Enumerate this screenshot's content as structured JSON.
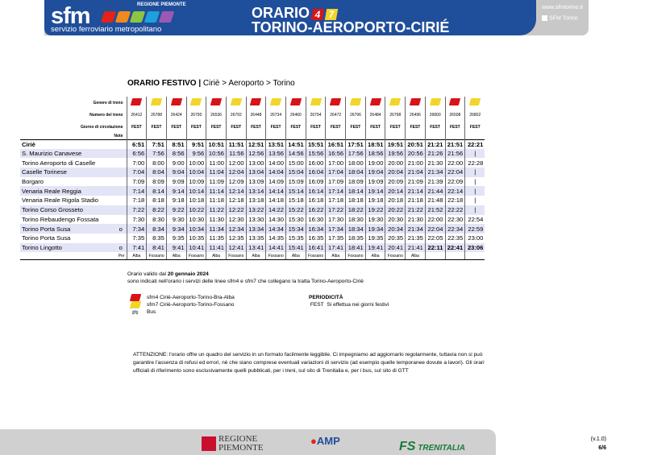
{
  "header": {
    "logo": "sfm",
    "logo_region": "REGIONE PIEMONTE",
    "logo_subtitle": "servizio ferroviario metropolitano",
    "title_line1": "ORARIO",
    "line_badges": [
      "4",
      "7"
    ],
    "title_line2": "TORINO-AEROPORTO-CIRIÉ",
    "website": "www.sfmtorino.it",
    "facebook": "SFM Torino",
    "swatch_colors": [
      "#e2231a",
      "#f08a1c",
      "#8dc63f",
      "#1ea0dc",
      "#9b59b6"
    ]
  },
  "heading": {
    "bold": "ORARIO FESTIVO |",
    "route": "Ciriè > Aeroporto > Torino"
  },
  "colors": {
    "sfm4": "#d7141a",
    "sfm7": "#f2d52a",
    "row_alt": "#e3e4f6",
    "header_blue": "#1f4e9a"
  },
  "table": {
    "labels": {
      "genre": "Genere di treno",
      "number": "Numero del treno",
      "days": "Giorno di circolazione",
      "note": "Note",
      "per": "Per"
    },
    "genres": [
      "sfm4",
      "sfm7",
      "sfm4",
      "sfm7",
      "sfm4",
      "sfm7",
      "sfm4",
      "sfm7",
      "sfm4",
      "sfm7",
      "sfm4",
      "sfm7",
      "sfm4",
      "sfm7",
      "sfm4",
      "sfm7",
      "sfm4",
      "sfm7"
    ],
    "numbers": [
      "26412",
      "26788",
      "26424",
      "26790",
      "26536",
      "26792",
      "26448",
      "26734",
      "26460",
      "26794",
      "26472",
      "26796",
      "26484",
      "26798",
      "26496",
      "26800",
      "26508",
      "26802"
    ],
    "days": [
      "FEST",
      "FEST",
      "FEST",
      "FEST",
      "FEST",
      "FEST",
      "FEST",
      "FEST",
      "FEST",
      "FEST",
      "FEST",
      "FEST",
      "FEST",
      "FEST",
      "FEST",
      "FEST",
      "FEST",
      "FEST"
    ],
    "stations": [
      {
        "name": "Ciriè",
        "mark": "",
        "bold": true,
        "times": [
          "6:51",
          "7:51",
          "8:51",
          "9:51",
          "10:51",
          "11:51",
          "12:51",
          "13:51",
          "14:51",
          "15:51",
          "16:51",
          "17:51",
          "18:51",
          "19:51",
          "20:51",
          "21:21",
          "21:51",
          "22:21"
        ]
      },
      {
        "name": "S. Maurizio Canavese",
        "mark": "",
        "times": [
          "6:56",
          "7:56",
          "8:56",
          "9:56",
          "10:56",
          "11:56",
          "12:56",
          "13:56",
          "14:56",
          "15:56",
          "16:56",
          "17:56",
          "18:56",
          "19:56",
          "20:56",
          "21:26",
          "21:56",
          "|"
        ]
      },
      {
        "name": "Torino Aeroporto di Caselle",
        "mark": "",
        "times": [
          "7:00",
          "8:00",
          "9:00",
          "10:00",
          "11:00",
          "12:00",
          "13:00",
          "14:00",
          "15:00",
          "16:00",
          "17:00",
          "18:00",
          "19:00",
          "20:00",
          "21:00",
          "21:30",
          "22:00",
          "22:28"
        ]
      },
      {
        "name": "Caselle Torinese",
        "mark": "",
        "times": [
          "7:04",
          "8:04",
          "9:04",
          "10:04",
          "11:04",
          "12:04",
          "13:04",
          "14:04",
          "15:04",
          "16:04",
          "17:04",
          "18:04",
          "19:04",
          "20:04",
          "21:04",
          "21:34",
          "22:04",
          "|"
        ]
      },
      {
        "name": "Borgaro",
        "mark": "",
        "times": [
          "7:09",
          "8:09",
          "9:09",
          "10:09",
          "11:09",
          "12:09",
          "13:09",
          "14:09",
          "15:09",
          "16:09",
          "17:09",
          "18:09",
          "19:09",
          "20:09",
          "21:09",
          "21:39",
          "22:09",
          "|"
        ]
      },
      {
        "name": "Venaria Reale Reggia",
        "mark": "",
        "times": [
          "7:14",
          "8:14",
          "9:14",
          "10:14",
          "11:14",
          "12:14",
          "13:14",
          "14:14",
          "15:14",
          "16:14",
          "17:14",
          "18:14",
          "19:14",
          "20:14",
          "21:14",
          "21:44",
          "22:14",
          "|"
        ]
      },
      {
        "name": "Venaria Reale Rigola Stadio",
        "mark": "",
        "times": [
          "7:18",
          "8:18",
          "9:18",
          "10:18",
          "11:18",
          "12:18",
          "13:18",
          "14:18",
          "15:18",
          "16:18",
          "17:18",
          "18:18",
          "19:18",
          "20:18",
          "21:18",
          "21:48",
          "22:18",
          "|"
        ]
      },
      {
        "name": "Torino Corso Grosseto",
        "mark": "",
        "times": [
          "7:22",
          "8:22",
          "9:22",
          "10:22",
          "11:22",
          "12:22",
          "13:22",
          "14:22",
          "15:22",
          "16:22",
          "17:22",
          "18:22",
          "19:22",
          "20:22",
          "21:22",
          "21:52",
          "22:22",
          "|"
        ]
      },
      {
        "name": "Torino Rebaudengo Fossata",
        "mark": "",
        "times": [
          "7:30",
          "8:30",
          "9:30",
          "10:30",
          "11:30",
          "12:30",
          "13:30",
          "14:30",
          "15:30",
          "16:30",
          "17:30",
          "18:30",
          "19:30",
          "20:30",
          "21:30",
          "22:00",
          "22:30",
          "22:54"
        ]
      },
      {
        "name": "Torino Porta Susa",
        "mark": "o",
        "times": [
          "7:34",
          "8:34",
          "9:34",
          "10:34",
          "11:34",
          "12:34",
          "13:34",
          "14:34",
          "15:34",
          "16:34",
          "17:34",
          "18:34",
          "19:34",
          "20:34",
          "21:34",
          "22:04",
          "22:34",
          "22:59"
        ]
      },
      {
        "name": "Torino Porta Susa",
        "mark": "",
        "times": [
          "7:35",
          "8:35",
          "9:35",
          "10:35",
          "11:35",
          "12:35",
          "13:35",
          "14:35",
          "15:35",
          "16:35",
          "17:35",
          "18:35",
          "19:35",
          "20:35",
          "21:35",
          "22:05",
          "22:35",
          "23:00"
        ]
      },
      {
        "name": "Torino Lingotto",
        "mark": "o",
        "bold_last": 3,
        "times": [
          "7:41",
          "8:41",
          "9:41",
          "10:41",
          "11:41",
          "12:41",
          "13:41",
          "14:41",
          "15:41",
          "16:41",
          "17:41",
          "18:41",
          "19:41",
          "20:41",
          "21:41",
          "22:11",
          "22:41",
          "23:06"
        ]
      }
    ],
    "per": [
      "Alba",
      "Fossano",
      "Alba",
      "Fossano",
      "Alba",
      "Fossano",
      "Alba",
      "Fossano",
      "Alba",
      "Fossano",
      "Alba",
      "Fossano",
      "Alba",
      "Fossano",
      "Alba",
      "",
      "",
      ""
    ]
  },
  "notes": {
    "valid_prefix": "Orario valido dal",
    "valid_date": "20 gennaio 2024",
    "line2": "sono indicati nell'orario i servizi delle linee sfm4 e sfm7 che collegano la tratta Torino-Aeroporto-Ciriè"
  },
  "legend": [
    {
      "icon": "sfm4",
      "text": "sfm4 Ciriè-Aeroporto-Torino-Bra-Alba"
    },
    {
      "icon": "sfm7",
      "text": "sfm7 Ciriè-Aeroporto-Torino-Fossano"
    },
    {
      "icon": "bus",
      "text": "Bus"
    }
  ],
  "periodicity": {
    "title": "PERIODICITÀ",
    "code": "FEST",
    "desc": "Si effettua nei giorni festivi"
  },
  "attention": "ATTENZIONE: l'orario offre un quadro del servizio in un formato facilmente leggibile. Ci impegniamo ad aggiornarlo regolarmente, tuttavia non si può garantire l'assenza di refusi ed errori, nè che siano comprese eventuali variazioni di servizio (ad esempio quelle temporanee dovute a lavori). Gli orari ufficiali di riferimento sono esclusivamente quelli pubblicati, per i treni, sul sito di Trenitalia e, per i bus, sul sito di GTT",
  "footer": {
    "logos": [
      "REGIONE PIEMONTE",
      "AMP",
      "TRENITALIA"
    ],
    "version": "(v.1.0)",
    "page": "6/6"
  }
}
